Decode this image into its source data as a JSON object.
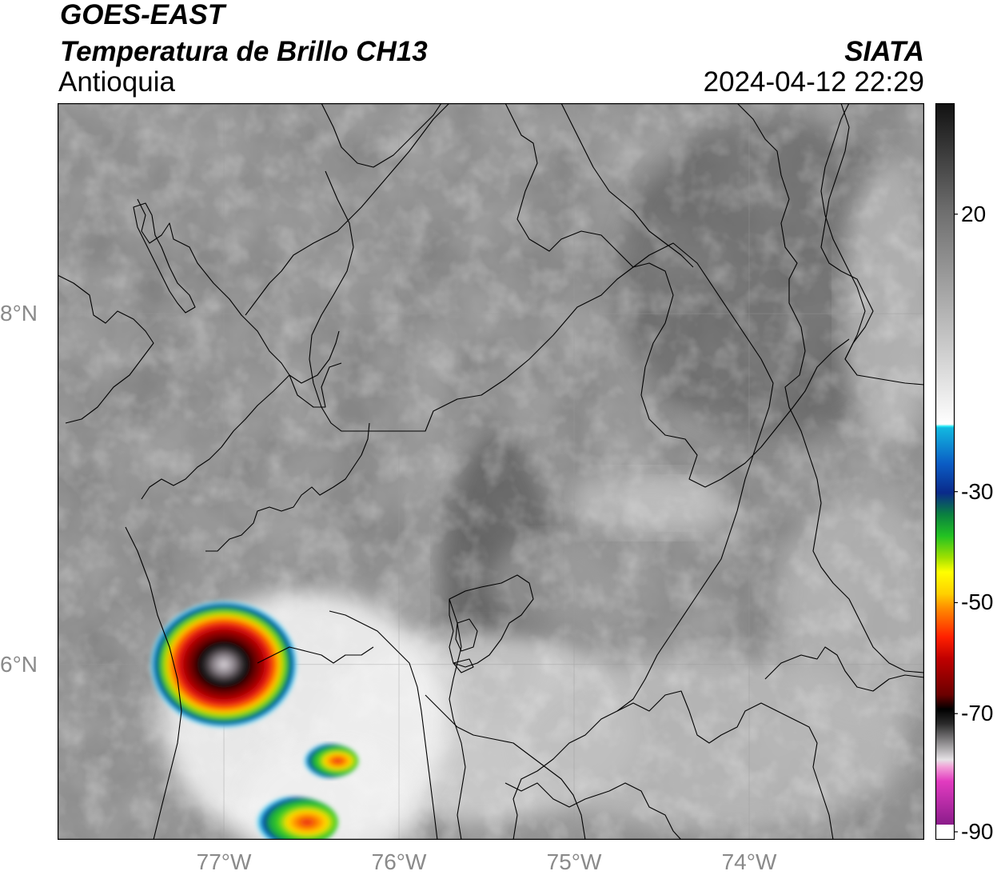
{
  "header": {
    "satellite": "GOES-EAST",
    "product": "Temperatura de Brillo CH13",
    "region": "Antioquia",
    "organization": "SIATA",
    "datetime": "2024-04-12 22:29"
  },
  "map": {
    "lon_range": [
      -77.95,
      -73.0
    ],
    "lat_range": [
      5.0,
      9.2
    ],
    "lon_ticks": [
      {
        "value": -77,
        "label": "77°W"
      },
      {
        "value": -76,
        "label": "76°W"
      },
      {
        "value": -75,
        "label": "75°W"
      },
      {
        "value": -74,
        "label": "74°W"
      }
    ],
    "lat_ticks": [
      {
        "value": 8,
        "label": "8°N"
      },
      {
        "value": 6,
        "label": "6°N"
      }
    ],
    "gridlines": true,
    "storm_cells": [
      {
        "lon": -77.0,
        "lat": 6.0,
        "radius_deg": 0.45,
        "min_temp": -80
      },
      {
        "lon": -76.4,
        "lat": 5.45,
        "radius_deg": 0.12,
        "min_temp": -55
      },
      {
        "lon": -76.6,
        "lat": 5.1,
        "radius_deg": 0.18,
        "min_temp": -58
      }
    ]
  },
  "colorbar": {
    "range": [
      -90,
      40
    ],
    "ticks": [
      {
        "value": 20,
        "label": "20"
      },
      {
        "value": -30,
        "label": "-30"
      },
      {
        "value": -50,
        "label": "-50"
      },
      {
        "value": -70,
        "label": "-70"
      },
      {
        "value": -90,
        "label": "-90"
      }
    ]
  }
}
